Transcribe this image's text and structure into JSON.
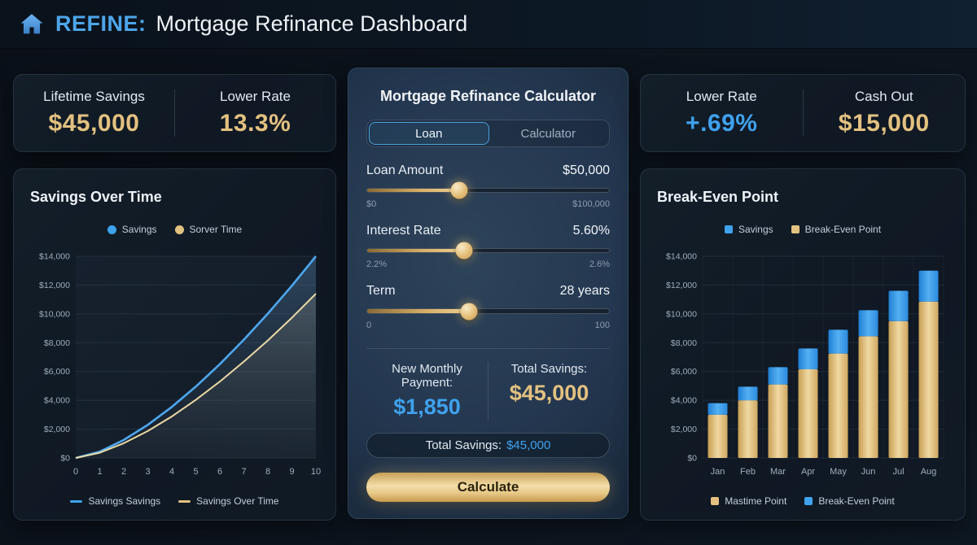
{
  "header": {
    "brand": "REFINE:",
    "title": "Mortgage Refinance Dashboard"
  },
  "left_stats": {
    "items": [
      {
        "label": "Lifetime Savings",
        "value": "$45,000"
      },
      {
        "label": "Lower Rate",
        "value": "13.3%"
      }
    ]
  },
  "right_stats": {
    "items": [
      {
        "label": "Lower Rate",
        "value": "+.69%"
      },
      {
        "label": "Cash Out",
        "value": "$15,000"
      }
    ]
  },
  "calculator": {
    "title": "Mortgage Refinance Calculator",
    "tabs": [
      {
        "label": "Loan"
      },
      {
        "label": "Calculator"
      }
    ],
    "sliders": [
      {
        "label": "Loan Amount",
        "value": "$50,000",
        "min": "$0",
        "max": "$100,000",
        "percent": 38
      },
      {
        "label": "Interest Rate",
        "value": "5.60%",
        "min": "2.2%",
        "max": "2.6%",
        "percent": 40
      },
      {
        "label": "Term",
        "value": "28 years",
        "min": "0",
        "max": "100",
        "percent": 42
      }
    ],
    "results": [
      {
        "label": "New Monthly Payment:",
        "value": "$1,850"
      },
      {
        "label": "Total Savings:",
        "value": "$45,000"
      }
    ],
    "summary_pill": {
      "label": "Total Savings:",
      "value": "$45,000"
    },
    "calculate_label": "Calculate"
  },
  "colors": {
    "blue": "#3fa2ee",
    "gold": "#e3c180",
    "blue_line": "#4da8f0",
    "gold_line": "#ecd9a4"
  },
  "chart_data": [
    {
      "type": "area",
      "title": "Savings Over Time",
      "x": [
        0,
        1,
        2,
        3,
        4,
        5,
        6,
        7,
        8,
        9,
        10
      ],
      "series": [
        {
          "name": "Savings Savings",
          "color": "#4da8f0",
          "values": [
            0,
            440,
            1250,
            2300,
            3540,
            4950,
            6510,
            8210,
            10020,
            11950,
            14000
          ]
        },
        {
          "name": "Savings Over Time",
          "color": "#ecd9a4",
          "values": [
            0,
            360,
            1020,
            1870,
            2880,
            4030,
            5300,
            6690,
            8160,
            9730,
            11400
          ]
        }
      ],
      "top_legend": [
        "Savings",
        "Sorver Time"
      ],
      "bottom_legend": [
        "Savings Savings",
        "Savings Over Time"
      ],
      "ylim": [
        0,
        14000
      ],
      "ytick_step": 2000,
      "grid": true,
      "legend_position": "top-and-bottom"
    },
    {
      "type": "bar",
      "title": "Break-Even Point",
      "categories": [
        "Jan",
        "Feb",
        "Mar",
        "Apr",
        "May",
        "Jun",
        "Jul",
        "Aug"
      ],
      "stacked": true,
      "series": [
        {
          "name": "Mastime Point",
          "color": "#ddb873",
          "values": [
            3000,
            4000,
            5100,
            6150,
            7250,
            8450,
            9500,
            10850
          ]
        },
        {
          "name": "Break-Even Point",
          "color": "#2f8fe0",
          "values": [
            800,
            950,
            1200,
            1450,
            1650,
            1800,
            2100,
            2150
          ]
        }
      ],
      "top_legend": [
        "Savings",
        "Break-Even Point"
      ],
      "bottom_legend": [
        "Mastime Point",
        "Break-Even Point"
      ],
      "ylim": [
        0,
        14000
      ],
      "ytick_step": 2000,
      "grid": true,
      "legend_position": "top-and-bottom"
    }
  ]
}
